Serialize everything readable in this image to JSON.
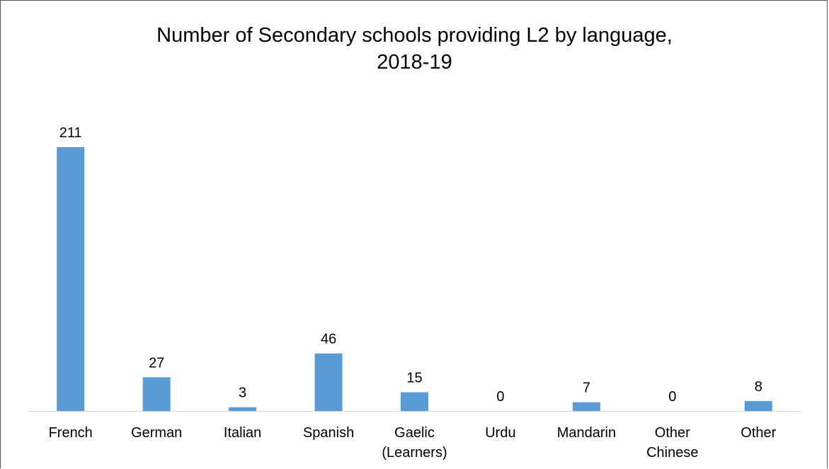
{
  "chart_data": {
    "type": "bar",
    "title_lines": [
      "Number of Secondary schools providing L2 by language,",
      "2018-19"
    ],
    "categories": [
      "French",
      "German",
      "Italian",
      "Spanish",
      "Gaelic (Learners)",
      "Urdu",
      "Mandarin",
      "Other Chinese",
      "Other"
    ],
    "category_lines": [
      [
        "French"
      ],
      [
        "German"
      ],
      [
        "Italian"
      ],
      [
        "Spanish"
      ],
      [
        "Gaelic",
        "(Learners)"
      ],
      [
        "Urdu"
      ],
      [
        "Mandarin"
      ],
      [
        "Other",
        "Chinese"
      ],
      [
        "Other"
      ]
    ],
    "values": [
      211,
      27,
      3,
      46,
      15,
      0,
      7,
      0,
      8
    ],
    "xlabel": "",
    "ylabel": "",
    "ylim": [
      0,
      211
    ],
    "grid": false,
    "legend": "none",
    "bar_color": "#5b9bd5",
    "axis_color": "#d9d9d9"
  }
}
